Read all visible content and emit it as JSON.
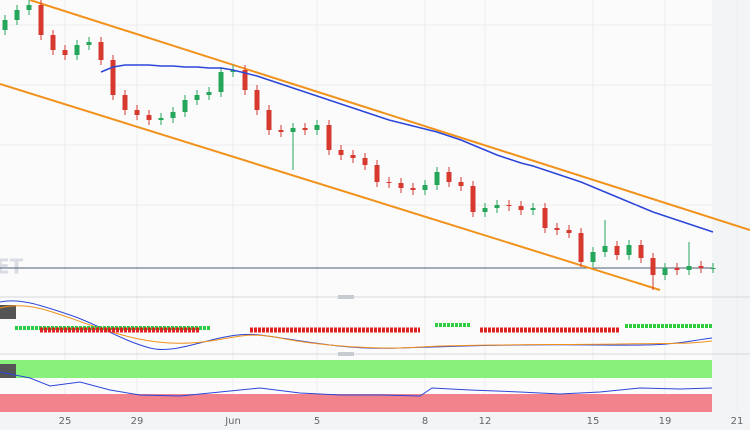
{
  "chart_data": {
    "type": "candlestick",
    "watermark": "ET",
    "open": [
      270,
      280,
      290,
      295,
      265,
      250,
      245,
      255,
      258,
      240,
      205,
      190,
      185,
      180,
      182,
      188,
      200,
      205,
      208,
      228,
      230,
      210,
      190,
      170,
      168,
      172,
      170,
      175,
      150,
      145,
      142,
      135,
      118,
      117,
      112,
      110,
      115,
      128,
      118,
      114,
      88,
      92,
      95,
      94,
      90,
      92,
      72,
      70,
      67,
      38,
      48,
      54,
      45,
      55,
      42,
      25,
      32,
      30,
      34,
      32
    ],
    "high": [
      285,
      295,
      300,
      300,
      270,
      255,
      260,
      263,
      263,
      245,
      210,
      195,
      190,
      187,
      193,
      205,
      210,
      213,
      233,
      235,
      235,
      215,
      195,
      175,
      177,
      177,
      180,
      180,
      155,
      150,
      147,
      140,
      123,
      122,
      117,
      120,
      133,
      133,
      123,
      119,
      97,
      100,
      100,
      99,
      97,
      97,
      77,
      75,
      72,
      53,
      80,
      59,
      60,
      60,
      47,
      37,
      37,
      58,
      39,
      37
    ],
    "low": [
      265,
      275,
      285,
      260,
      245,
      240,
      240,
      250,
      235,
      200,
      185,
      180,
      175,
      175,
      177,
      183,
      195,
      200,
      203,
      223,
      205,
      185,
      165,
      163,
      130,
      165,
      165,
      145,
      140,
      137,
      130,
      113,
      112,
      107,
      105,
      105,
      110,
      113,
      109,
      83,
      83,
      87,
      89,
      85,
      85,
      67,
      65,
      62,
      33,
      33,
      43,
      40,
      40,
      37,
      10,
      20,
      25,
      25,
      27,
      27
    ],
    "close": [
      280,
      290,
      295,
      265,
      250,
      245,
      255,
      258,
      240,
      205,
      190,
      185,
      180,
      182,
      188,
      200,
      205,
      208,
      228,
      230,
      210,
      190,
      170,
      168,
      172,
      170,
      175,
      150,
      145,
      142,
      135,
      118,
      117,
      112,
      110,
      115,
      128,
      118,
      114,
      88,
      92,
      95,
      94,
      90,
      92,
      72,
      70,
      67,
      38,
      48,
      54,
      45,
      55,
      42,
      25,
      32,
      30,
      34,
      32,
      32
    ],
    "ma": [
      null,
      null,
      null,
      null,
      null,
      null,
      null,
      null,
      228,
      233,
      235,
      235,
      235,
      234,
      234,
      233,
      233,
      232,
      232,
      230,
      227,
      224,
      220,
      216,
      212,
      208,
      204,
      200,
      196,
      192,
      188,
      184,
      180,
      177,
      174,
      171,
      168,
      164,
      160,
      155,
      150,
      145,
      141,
      137,
      134,
      130,
      126,
      122,
      118,
      113,
      108,
      103,
      98,
      93,
      88,
      84,
      80,
      76,
      72,
      68
    ],
    "up_color": "#26a65b",
    "down_color": "#d63a2f",
    "ma_color": "#2c46d8",
    "ylim": [
      5,
      300
    ],
    "xticks": [
      {
        "value": 5,
        "label": "25"
      },
      {
        "value": 11,
        "label": "29"
      },
      {
        "value": 19,
        "label": "Jun"
      },
      {
        "value": 26,
        "label": "5"
      },
      {
        "value": 35,
        "label": "8"
      },
      {
        "value": 40,
        "label": "12"
      },
      {
        "value": 49,
        "label": "15"
      },
      {
        "value": 55,
        "label": "19"
      },
      {
        "value": 61,
        "label": "21"
      }
    ],
    "grid": true
  }
}
